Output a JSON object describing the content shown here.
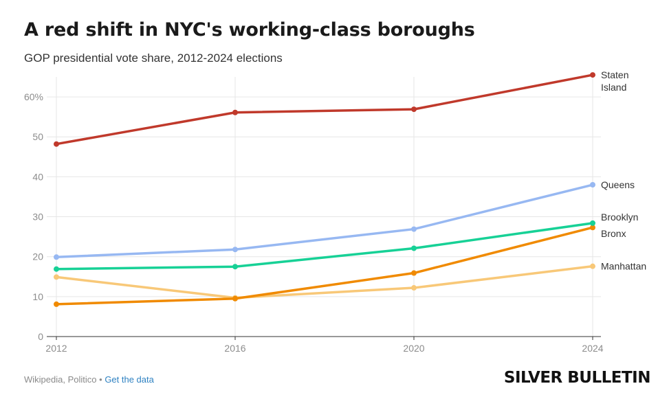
{
  "header": {
    "title": "A red shift in NYC's working-class boroughs",
    "subtitle": "GOP presidential vote share, 2012-2024 elections"
  },
  "footer": {
    "source": "Wikipedia, Politico",
    "separator": "•",
    "link": "Get the data",
    "brand": "SILVER BULLETIN"
  },
  "chart_data": {
    "type": "line",
    "title": "A red shift in NYC's working-class boroughs",
    "subtitle": "GOP presidential vote share, 2012-2024 elections",
    "x": [
      2012,
      2016,
      2020,
      2024
    ],
    "x_tick_labels": [
      "2012",
      "2016",
      "2020",
      "2024"
    ],
    "ylim": [
      0,
      65
    ],
    "y_ticks": [
      0,
      10,
      20,
      30,
      40,
      50,
      60
    ],
    "y_tick_labels": [
      "0",
      "10",
      "20",
      "30",
      "40",
      "50",
      "60%"
    ],
    "grid": true,
    "legend": "direct labels at line ends",
    "series": [
      {
        "name": "Staten Island",
        "label_lines": [
          "Staten",
          "Island"
        ],
        "color": "#c0392b",
        "values": [
          48.2,
          56.1,
          56.9,
          65.5
        ]
      },
      {
        "name": "Queens",
        "label_lines": [
          "Queens"
        ],
        "color": "#97b8f2",
        "values": [
          19.9,
          21.8,
          26.9,
          38.0
        ]
      },
      {
        "name": "Brooklyn",
        "label_lines": [
          "Brooklyn"
        ],
        "color": "#17d196",
        "values": [
          16.9,
          17.5,
          22.1,
          28.4
        ]
      },
      {
        "name": "Bronx",
        "label_lines": [
          "Bronx"
        ],
        "color": "#f08a00",
        "values": [
          8.1,
          9.5,
          15.9,
          27.3
        ]
      },
      {
        "name": "Manhattan",
        "label_lines": [
          "Manhattan"
        ],
        "color": "#f8c878",
        "values": [
          14.9,
          9.7,
          12.2,
          17.6
        ]
      }
    ]
  }
}
